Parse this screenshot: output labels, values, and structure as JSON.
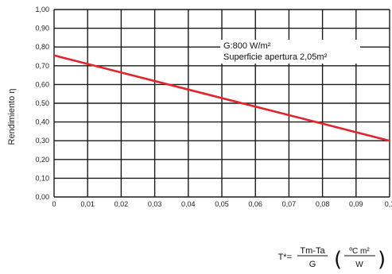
{
  "chart_data": {
    "type": "line",
    "x_ticks": [
      "0",
      "0,01",
      "0,02",
      "0,03",
      "0,04",
      "0,05",
      "0,06",
      "0,07",
      "0,08",
      "0,09",
      "0,1"
    ],
    "y_ticks": [
      "0,00",
      "0,10",
      "0,20",
      "0,30",
      "0,40",
      "0,50",
      "0,60",
      "0,70",
      "0,80",
      "0,90",
      "1,00"
    ],
    "xlim": [
      0,
      0.1
    ],
    "ylim": [
      0,
      1
    ],
    "ylabel": "Rendimiento η",
    "grid": true,
    "series": [
      {
        "color": "#e3242b",
        "x": [
          0,
          0.1
        ],
        "y": [
          0.755,
          0.3
        ]
      }
    ],
    "annotations": [
      "G:800  W/m²",
      "Superficie  apertura  2,05m²"
    ],
    "formula": {
      "lhs": "T*=",
      "numerator": "Tm-Ta",
      "denominator": "G",
      "unit_numerator": "ºC  m²",
      "unit_denominator": "W"
    }
  }
}
